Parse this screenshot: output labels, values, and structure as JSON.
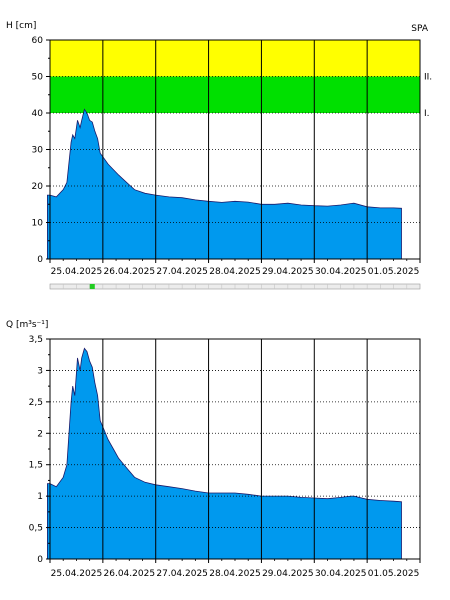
{
  "chart_data": [
    {
      "type": "area",
      "ylabel": "H [cm]",
      "station": "SPA",
      "ylim": [
        0,
        60
      ],
      "yticks": [
        "0",
        "10",
        "20",
        "30",
        "40",
        "50",
        "60"
      ],
      "x_dates": [
        "25.04.2025",
        "26.04.2025",
        "27.04.2025",
        "28.04.2025",
        "29.04.2025",
        "30.04.2025",
        "01.05.2025"
      ],
      "x_range_days": [
        0,
        7
      ],
      "bands": [
        {
          "from": 40,
          "to": 50,
          "color": "#00e000",
          "label": "I."
        },
        {
          "from": 50,
          "to": 60,
          "color": "#ffff00",
          "label": "II."
        }
      ],
      "fill_color": "#0099ee",
      "grid": "dotted",
      "series": [
        {
          "x": [
            -0.05,
            0.0,
            0.12,
            0.25,
            0.32,
            0.4,
            0.43,
            0.47,
            0.52,
            0.57,
            0.6,
            0.65,
            0.7,
            0.75,
            0.8,
            0.85,
            0.9,
            0.95,
            1.0,
            1.1,
            1.2,
            1.3,
            1.45,
            1.6,
            1.8,
            2.0,
            2.25,
            2.5,
            2.75,
            3.0,
            3.25,
            3.5,
            3.75,
            4.0,
            4.25,
            4.5,
            4.75,
            5.0,
            5.25,
            5.5,
            5.7,
            5.75,
            6.0,
            6.25,
            6.5,
            6.65
          ],
          "y": [
            17.5,
            17.5,
            17.0,
            19.0,
            21.0,
            32.0,
            34.0,
            33.0,
            38.0,
            36.0,
            38.0,
            41.0,
            40.0,
            38.0,
            37.5,
            35.0,
            33.0,
            29.0,
            28.0,
            26.0,
            24.5,
            23.0,
            21.0,
            19.0,
            18.0,
            17.5,
            17.0,
            16.8,
            16.2,
            15.8,
            15.5,
            15.8,
            15.6,
            15.0,
            15.0,
            15.3,
            14.8,
            14.6,
            14.5,
            14.8,
            15.2,
            15.3,
            14.3,
            14.0,
            14.0,
            13.9
          ]
        }
      ]
    },
    {
      "type": "area",
      "ylabel": "Q [m³s⁻¹]",
      "ylim": [
        0,
        3.5
      ],
      "yticks": [
        "0",
        "0,5",
        "1",
        "1,5",
        "2",
        "2,5",
        "3",
        "3,5"
      ],
      "x_dates": [
        "25.04.2025",
        "26.04.2025",
        "27.04.2025",
        "28.04.2025",
        "29.04.2025",
        "30.04.2025",
        "01.05.2025"
      ],
      "x_range_days": [
        0,
        7
      ],
      "fill_color": "#0099ee",
      "grid": "dotted",
      "series": [
        {
          "x": [
            -0.05,
            0.0,
            0.12,
            0.25,
            0.32,
            0.4,
            0.43,
            0.47,
            0.52,
            0.57,
            0.6,
            0.65,
            0.7,
            0.75,
            0.8,
            0.85,
            0.9,
            0.95,
            1.0,
            1.1,
            1.2,
            1.3,
            1.45,
            1.6,
            1.8,
            2.0,
            2.25,
            2.5,
            2.75,
            3.0,
            3.25,
            3.5,
            3.75,
            4.0,
            4.25,
            4.5,
            4.75,
            5.0,
            5.25,
            5.5,
            5.7,
            5.75,
            6.0,
            6.25,
            6.5,
            6.65
          ],
          "y": [
            1.2,
            1.2,
            1.15,
            1.3,
            1.5,
            2.5,
            2.75,
            2.6,
            3.2,
            3.0,
            3.2,
            3.35,
            3.3,
            3.15,
            3.05,
            2.8,
            2.6,
            2.2,
            2.1,
            1.9,
            1.75,
            1.6,
            1.45,
            1.3,
            1.22,
            1.18,
            1.15,
            1.12,
            1.08,
            1.05,
            1.05,
            1.05,
            1.03,
            1.0,
            1.0,
            1.0,
            0.98,
            0.97,
            0.96,
            0.98,
            1.0,
            1.0,
            0.95,
            0.93,
            0.92,
            0.91
          ]
        }
      ]
    }
  ],
  "timeline": {
    "marker_color": "#22cc22",
    "marker_day": 0.8
  }
}
